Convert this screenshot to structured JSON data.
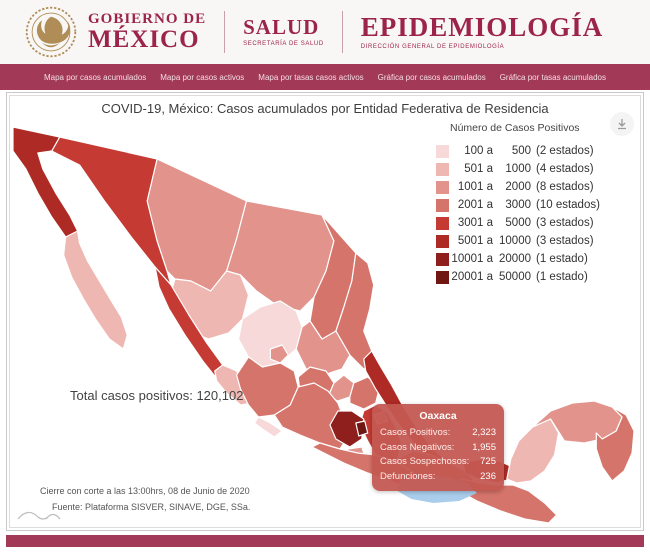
{
  "header": {
    "gobierno_line1": "GOBIERNO DE",
    "gobierno_line2": "MÉXICO",
    "salud_title": "SALUD",
    "salud_subtitle": "SECRETARÍA DE SALUD",
    "epi_title": "EPIDEMIOLOGÍA",
    "epi_subtitle": "DIRECCIÓN GENERAL DE EPIDEMIOLOGÍA",
    "brand_color": "#9d2449",
    "emblem_color": "#b08d57"
  },
  "nav": {
    "bg_color": "#a23a57",
    "items": [
      "Mapa por casos acumulados",
      "Mapa por casos activos",
      "Mapa por tasas casos activos",
      "Gráfica por casos acumulados",
      "Gráfica por tasas acumulados"
    ]
  },
  "chart": {
    "title": "COVID-19, México: Casos acumulados por Entidad Federativa de Residencia",
    "total_label": "Total casos positivos: 120,102",
    "footnote_line1": "Cierre con corte a las 13:00hrs, 08 de Junio de 2020",
    "footnote_line2": "Fuente: Plataforma SISVER, SINAVE, DGE, SSa."
  },
  "legend": {
    "title": "Número de Casos Positivos",
    "colors": [
      "#f6d9d8",
      "#efb7b1",
      "#e2938c",
      "#d5746b",
      "#c53a33",
      "#ae2a24",
      "#8e1f1c",
      "#701713"
    ],
    "rows": [
      {
        "from": "100 a",
        "to": "500",
        "count": "(2 estados)"
      },
      {
        "from": "501 a",
        "to": "1000",
        "count": "(4 estados)"
      },
      {
        "from": "1001 a",
        "to": "2000",
        "count": "(8 estados)"
      },
      {
        "from": "2001 a",
        "to": "3000",
        "count": "(10 estados)"
      },
      {
        "from": "3001 a",
        "to": "5000",
        "count": "(3 estados)"
      },
      {
        "from": "5001 a",
        "to": "10000",
        "count": "(3 estados)"
      },
      {
        "from": "10001 a",
        "to": "20000",
        "count": "(1 estado)"
      },
      {
        "from": "20001 a",
        "to": "50000",
        "count": "(1 estado)"
      }
    ]
  },
  "tooltip": {
    "state": "Oaxaca",
    "rows": [
      {
        "label": "Casos Positivos:",
        "value": "2,323"
      },
      {
        "label": "Casos Negativos:",
        "value": "1,955"
      },
      {
        "label": "Casos Sospechosos:",
        "value": "725"
      },
      {
        "label": "Defunciones:",
        "value": "236"
      }
    ]
  },
  "chart_data": {
    "type": "heatmap",
    "subtype": "choropleth-map",
    "title": "COVID-19, México: Casos acumulados por Entidad Federativa de Residencia",
    "legend_title": "Número de Casos Positivos",
    "total_positive_cases": 120102,
    "cutoff_note": "Cierre con corte a las 13:00hrs, 08 de Junio de 2020",
    "source": "Plataforma SISVER, SINAVE, DGE, SSa.",
    "classes": [
      {
        "range": [
          100,
          500
        ],
        "states_count": 2,
        "color": "#f6d9d8"
      },
      {
        "range": [
          501,
          1000
        ],
        "states_count": 4,
        "color": "#efb7b1"
      },
      {
        "range": [
          1001,
          2000
        ],
        "states_count": 8,
        "color": "#e2938c"
      },
      {
        "range": [
          2001,
          3000
        ],
        "states_count": 10,
        "color": "#d5746b"
      },
      {
        "range": [
          3001,
          5000
        ],
        "states_count": 3,
        "color": "#c53a33"
      },
      {
        "range": [
          5001,
          10000
        ],
        "states_count": 3,
        "color": "#ae2a24"
      },
      {
        "range": [
          10001,
          20000
        ],
        "states_count": 1,
        "color": "#8e1f1c"
      },
      {
        "range": [
          20001,
          50000
        ],
        "states_count": 1,
        "color": "#701713"
      }
    ],
    "highlighted_state": {
      "name": "Oaxaca",
      "casos_positivos": 2323,
      "casos_negativos": 1955,
      "casos_sospechosos": 725,
      "defunciones": 236
    },
    "water_color": "#a9cdea",
    "states": [
      {
        "name": "Chihuahua",
        "level": 3
      },
      {
        "name": "Coahuila",
        "level": 3
      },
      {
        "name": "Sonora",
        "level": 5
      },
      {
        "name": "Durango",
        "level": 2
      },
      {
        "name": "Zacatecas",
        "level": 1
      },
      {
        "name": "San Luis Potosí",
        "level": 3
      },
      {
        "name": "Nuevo León",
        "level": 4
      },
      {
        "name": "Tamaulipas",
        "level": 4
      },
      {
        "name": "Sinaloa",
        "level": 5
      },
      {
        "name": "Baja California",
        "level": 6
      },
      {
        "name": "Baja California Sur",
        "level": 2
      },
      {
        "name": "Nayarit",
        "level": 2
      },
      {
        "name": "Jalisco",
        "level": 4
      },
      {
        "name": "Aguascalientes",
        "level": 3
      },
      {
        "name": "Guanajuato",
        "level": 4
      },
      {
        "name": "Querétaro",
        "level": 3
      },
      {
        "name": "Hidalgo",
        "level": 4
      },
      {
        "name": "Michoacán",
        "level": 4
      },
      {
        "name": "Colima",
        "level": 1
      },
      {
        "name": "Veracruz",
        "level": 6
      },
      {
        "name": "Puebla",
        "level": 5
      },
      {
        "name": "México",
        "level": 7
      },
      {
        "name": "Ciudad de México",
        "level": 8
      },
      {
        "name": "Tlaxcala",
        "level": 3
      },
      {
        "name": "Morelos",
        "level": 3
      },
      {
        "name": "Guerrero",
        "level": 4
      },
      {
        "name": "Oaxaca",
        "level": 4
      },
      {
        "name": "Tabasco",
        "level": 6
      },
      {
        "name": "Chiapas",
        "level": 4
      },
      {
        "name": "Campeche",
        "level": 2
      },
      {
        "name": "Yucatán",
        "level": 3
      },
      {
        "name": "Quintana Roo",
        "level": 4
      }
    ]
  }
}
